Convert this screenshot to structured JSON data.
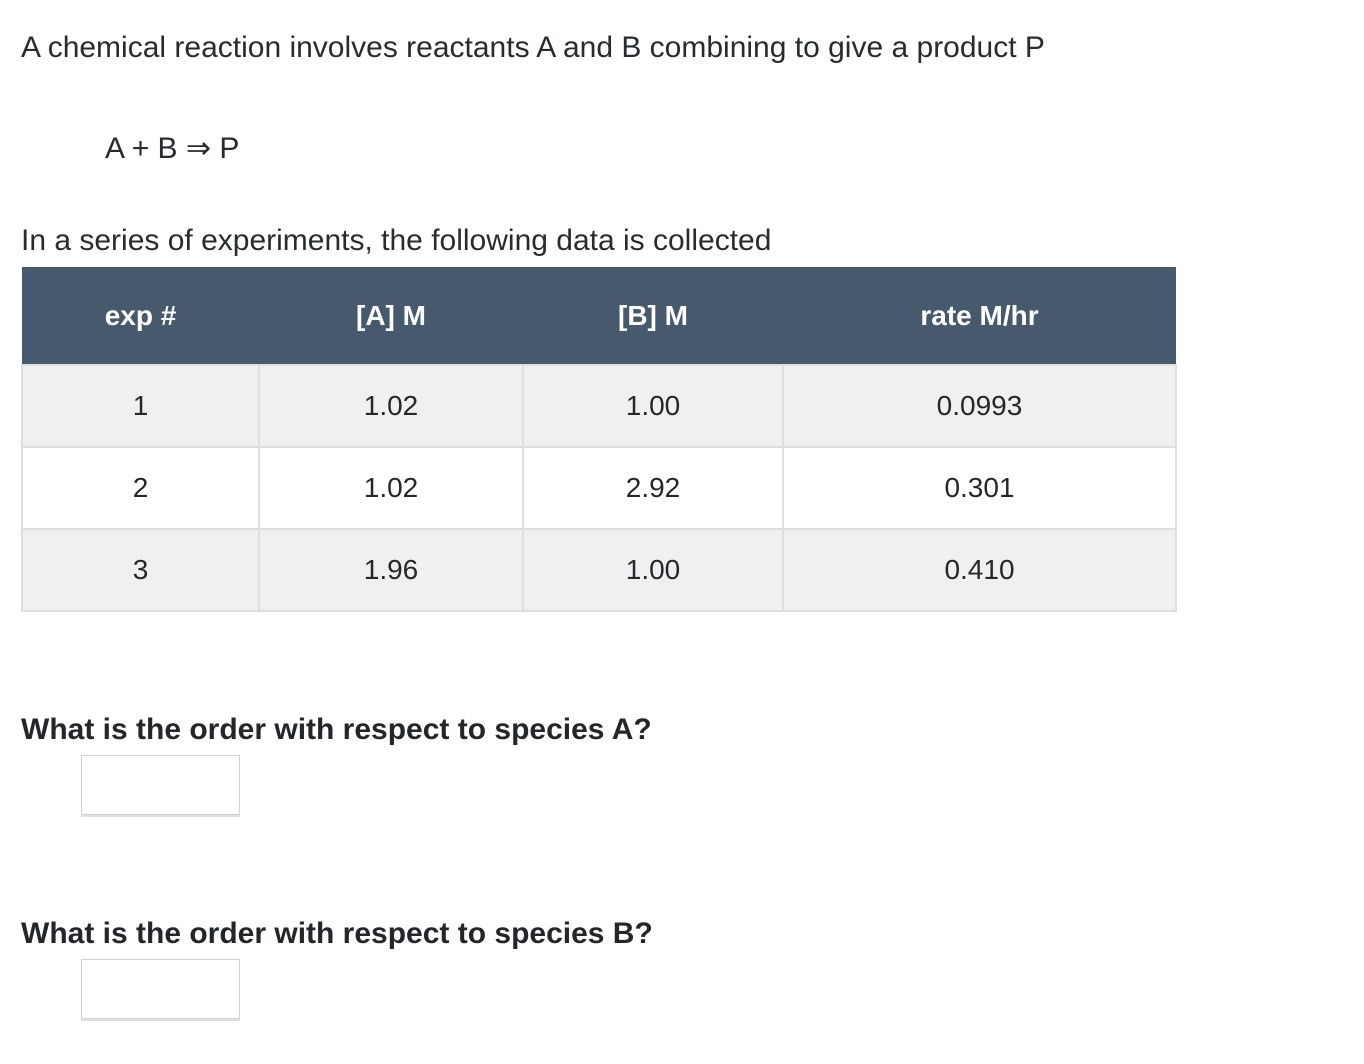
{
  "problem": {
    "statement": "A chemical reaction involves reactants A and B combining to give a product P",
    "equation": "A + B ⇒ P",
    "intro": "In a series of experiments, the following data is collected"
  },
  "table": {
    "columns": [
      "exp #",
      "[A] M",
      "[B] M",
      "rate M/hr"
    ],
    "rows": [
      [
        "1",
        "1.02",
        "1.00",
        "0.0993"
      ],
      [
        "2",
        "1.02",
        "2.92",
        "0.301"
      ],
      [
        "3",
        "1.96",
        "1.00",
        "0.410"
      ]
    ],
    "header_bg": "#47596d",
    "header_text_color": "#ffffff",
    "row_alt_bg": "#f0f0f0",
    "border_color": "#dedede"
  },
  "questions": [
    {
      "text": "What is the order with respect to species A?",
      "answer_value": ""
    },
    {
      "text": "What is the order with respect to species B?",
      "answer_value": ""
    }
  ]
}
